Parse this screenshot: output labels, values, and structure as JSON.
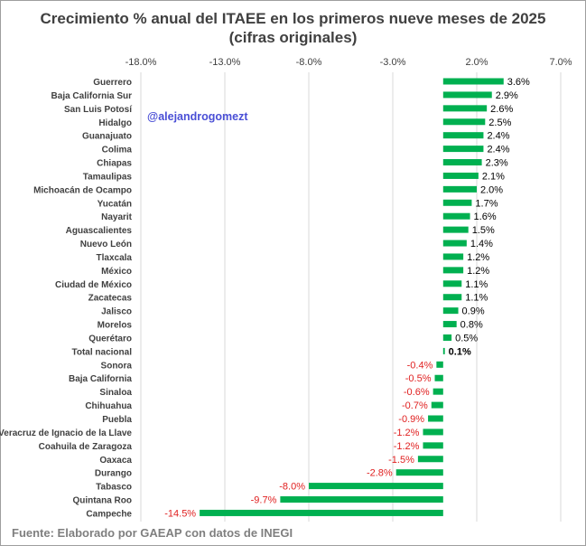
{
  "title_line1": "Crecimiento % anual del ITAEE en los primeros nueve meses de 2025",
  "title_line2": "(cifras originales)",
  "watermark": "@alejandrogomezt",
  "source": "Fuente: Elaborado por GAEAP con datos de INEGI",
  "colors": {
    "bar": "#00b050",
    "negative_label": "#e02020",
    "positive_label": "#000000",
    "gridline": "#d9d9d9",
    "text": "#404040"
  },
  "chart_data": {
    "type": "bar",
    "orientation": "horizontal",
    "title": "Crecimiento % anual del ITAEE en los primeros nueve meses de 2025 (cifras originales)",
    "xlim": [
      -18.0,
      7.0
    ],
    "xticks": [
      "-18.0%",
      "-13.0%",
      "-8.0%",
      "-3.0%",
      "2.0%",
      "7.0%"
    ],
    "xtick_values": [
      -18,
      -13,
      -8,
      -3,
      2,
      7
    ],
    "grid": true,
    "highlight_category": "Total nacional",
    "categories": [
      "Guerrero",
      "Baja California Sur",
      "San Luis Potosí",
      "Hidalgo",
      "Guanajuato",
      "Colima",
      "Chiapas",
      "Tamaulipas",
      "Michoacán de Ocampo",
      "Yucatán",
      "Nayarit",
      "Aguascalientes",
      "Nuevo León",
      "Tlaxcala",
      "México",
      "Ciudad de México",
      "Zacatecas",
      "Jalisco",
      "Morelos",
      "Querétaro",
      "Total nacional",
      "Sonora",
      "Baja California",
      "Sinaloa",
      "Chihuahua",
      "Puebla",
      "Veracruz de Ignacio de la Llave",
      "Coahuila de Zaragoza",
      "Oaxaca",
      "Durango",
      "Tabasco",
      "Quintana Roo",
      "Campeche"
    ],
    "values": [
      3.6,
      2.9,
      2.6,
      2.5,
      2.4,
      2.4,
      2.3,
      2.1,
      2.0,
      1.7,
      1.6,
      1.5,
      1.4,
      1.2,
      1.2,
      1.1,
      1.1,
      0.9,
      0.8,
      0.5,
      0.1,
      -0.4,
      -0.5,
      -0.6,
      -0.7,
      -0.9,
      -1.2,
      -1.2,
      -1.5,
      -2.8,
      -8.0,
      -9.7,
      -14.5
    ],
    "value_labels": [
      "3.6%",
      "2.9%",
      "2.6%",
      "2.5%",
      "2.4%",
      "2.4%",
      "2.3%",
      "2.1%",
      "2.0%",
      "1.7%",
      "1.6%",
      "1.5%",
      "1.4%",
      "1.2%",
      "1.2%",
      "1.1%",
      "1.1%",
      "0.9%",
      "0.8%",
      "0.5%",
      "0.1%",
      "-0.4%",
      "-0.5%",
      "-0.6%",
      "-0.7%",
      "-0.9%",
      "-1.2%",
      "-1.2%",
      "-1.5%",
      "-2.8%",
      "-8.0%",
      "-9.7%",
      "-14.5%"
    ]
  }
}
